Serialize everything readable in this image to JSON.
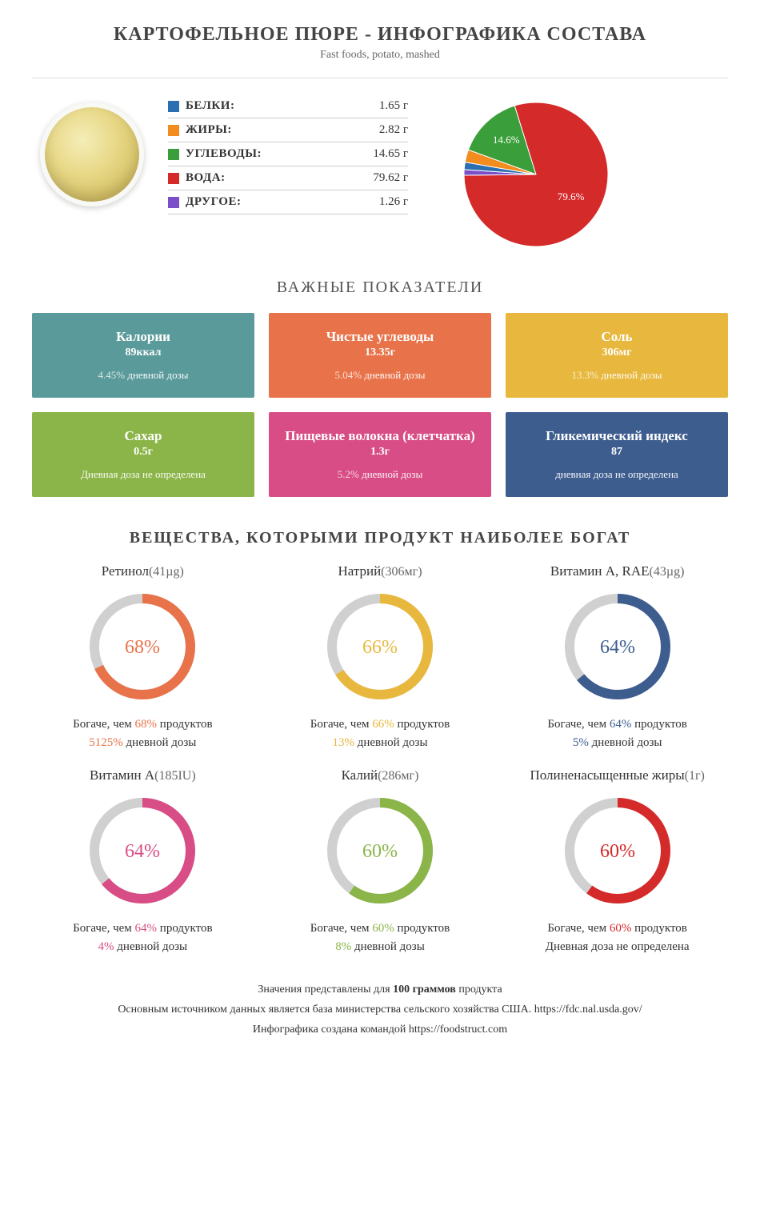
{
  "header": {
    "title": "КАРТОФЕЛЬНОЕ ПЮРЕ - ИНФОГРАФИКА СОСТАВА",
    "subtitle": "Fast foods, potato, mashed"
  },
  "composition": {
    "unit": "г",
    "items": [
      {
        "label": "БЕЛКИ:",
        "value": "1.65 г",
        "color": "#2b6fb3",
        "pct": 1.65
      },
      {
        "label": "ЖИРЫ:",
        "value": "2.82 г",
        "color": "#f28c1e",
        "pct": 2.82
      },
      {
        "label": "УГЛЕВОДЫ:",
        "value": "14.65 г",
        "color": "#3a9e3a",
        "pct": 14.65,
        "pie_label": "14.6%"
      },
      {
        "label": "ВОДА:",
        "value": "79.62 г",
        "color": "#d52a2a",
        "pct": 79.62,
        "pie_label": "79.6%"
      },
      {
        "label": "ДРУГОЕ:",
        "value": "1.26 г",
        "color": "#7b4fc9",
        "pct": 1.26
      }
    ]
  },
  "sections": {
    "indicators": "ВАЖНЫЕ ПОКАЗАТЕЛИ",
    "richest": "ВЕЩЕСТВА, КОТОРЫМИ ПРОДУКТ НАИБОЛЕЕ БОГАТ"
  },
  "cards": [
    {
      "title": "Калории",
      "value": "89ккал",
      "sub_pct": "4.45%",
      "sub_text": " дневной дозы",
      "bg": "#5a9a9a"
    },
    {
      "title": "Чистые углеводы",
      "value": "13.35г",
      "sub_pct": "5.04%",
      "sub_text": " дневной дозы",
      "bg": "#e8734a"
    },
    {
      "title": "Соль",
      "value": "306мг",
      "sub_pct": "13.3%",
      "sub_text": " дневной дозы",
      "bg": "#e8b83e"
    },
    {
      "title": "Сахар",
      "value": "0.5г",
      "sub_pct": "",
      "sub_text": "Дневная доза не определена",
      "bg": "#8bb548"
    },
    {
      "title": "Пищевые волокна (клетчатка)",
      "value": "1.3г",
      "sub_pct": "5.2%",
      "sub_text": " дневной дозы",
      "bg": "#d84d85"
    },
    {
      "title": "Гликемический индекс",
      "value": "87",
      "sub_pct": "",
      "sub_text": "дневная доза не определена",
      "bg": "#3d5d8f"
    }
  ],
  "rings": {
    "track_color": "#d0d0d0",
    "stroke_width": 12,
    "radius": 60,
    "items": [
      {
        "name": "Ретинол",
        "amount": "(41µg)",
        "pct": 68,
        "color": "#e8734a",
        "line1_a": "Богаче, чем ",
        "line1_b": "68%",
        "line1_c": " продуктов",
        "line2_a": "5125%",
        "line2_b": " дневной дозы"
      },
      {
        "name": "Натрий",
        "amount": "(306мг)",
        "pct": 66,
        "color": "#e8b83e",
        "line1_a": "Богаче, чем ",
        "line1_b": "66%",
        "line1_c": " продуктов",
        "line2_a": "13%",
        "line2_b": " дневной дозы"
      },
      {
        "name": "Витамин A, RAE",
        "amount": "(43µg)",
        "pct": 64,
        "color": "#3d5d8f",
        "line1_a": "Богаче, чем ",
        "line1_b": "64%",
        "line1_c": " продуктов",
        "line2_a": "5%",
        "line2_b": " дневной дозы"
      },
      {
        "name": "Витамин A",
        "amount": "(185IU)",
        "pct": 64,
        "color": "#d84d85",
        "line1_a": "Богаче, чем ",
        "line1_b": "64%",
        "line1_c": " продуктов",
        "line2_a": "4%",
        "line2_b": " дневной дозы"
      },
      {
        "name": "Калий",
        "amount": "(286мг)",
        "pct": 60,
        "color": "#8bb548",
        "line1_a": "Богаче, чем ",
        "line1_b": "60%",
        "line1_c": " продуктов",
        "line2_a": "8%",
        "line2_b": " дневной дозы"
      },
      {
        "name": "Полиненасыщенные жиры",
        "amount": "(1г)",
        "pct": 60,
        "color": "#d52a2a",
        "line1_a": "Богаче, чем ",
        "line1_b": "60%",
        "line1_c": " продуктов",
        "line2_a": "",
        "line2_b": "Дневная доза не определена"
      }
    ]
  },
  "footer": {
    "line1_a": "Значения представлены для ",
    "line1_b": "100 граммов",
    "line1_c": " продукта",
    "line2": "Основным источником данных является база министерства сельского хозяйства США. https://fdc.nal.usda.gov/",
    "line3": "Инфографика создана командой https://foodstruct.com"
  }
}
